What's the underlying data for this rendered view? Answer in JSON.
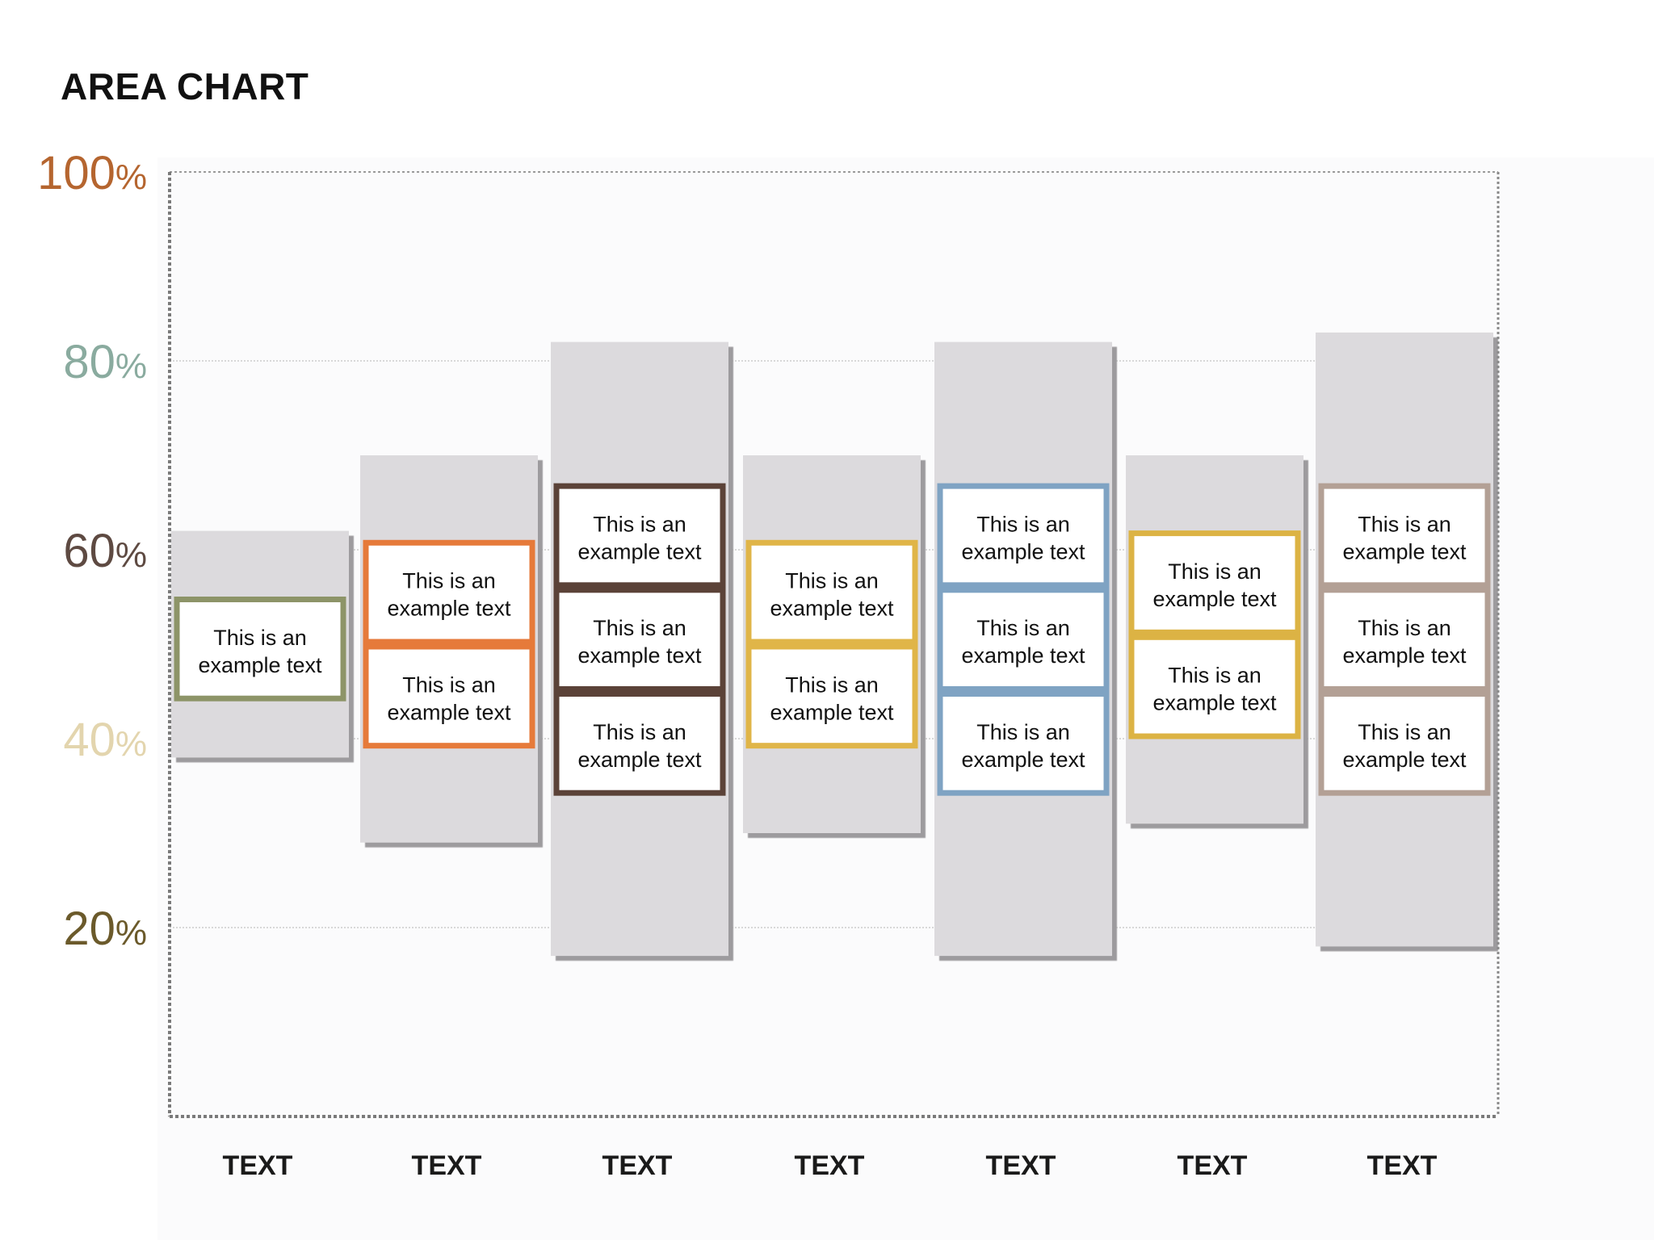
{
  "title": "AREA CHART",
  "chart_data": {
    "type": "bar",
    "title": "AREA CHART",
    "xlabel": "",
    "ylabel": "",
    "ylim": [
      0,
      100
    ],
    "grid": true,
    "categories": [
      "TEXT",
      "TEXT",
      "TEXT",
      "TEXT",
      "TEXT",
      "TEXT",
      "TEXT"
    ],
    "ranges": [
      {
        "low": 38,
        "high": 62
      },
      {
        "low": 29,
        "high": 70
      },
      {
        "low": 17,
        "high": 82
      },
      {
        "low": 30,
        "high": 70
      },
      {
        "low": 17,
        "high": 82
      },
      {
        "low": 31,
        "high": 70
      },
      {
        "low": 18,
        "high": 83
      }
    ],
    "y_ticks": [
      {
        "label": "100",
        "suffix": "%",
        "value": 100,
        "color": "#b5652f"
      },
      {
        "label": "80",
        "suffix": "%",
        "value": 80,
        "color": "#8aab9f"
      },
      {
        "label": "60",
        "suffix": "%",
        "value": 60,
        "color": "#5e4a42"
      },
      {
        "label": "40",
        "suffix": "%",
        "value": 40,
        "color": "#e3d5ae"
      },
      {
        "label": "20",
        "suffix": "%",
        "value": 20,
        "color": "#6b5a2b"
      }
    ],
    "column_colors": [
      "#8d9468",
      "#e67a3a",
      "#5b4238",
      "#e0b548",
      "#7fa3c3",
      "#dcb344",
      "#b3a095"
    ],
    "text_boxes": [
      {
        "column": 0,
        "line1": "This is an",
        "line2": "example text",
        "top": 55,
        "bottom": 44
      },
      {
        "column": 1,
        "line1": "This is an",
        "line2": "example text",
        "top": 61,
        "bottom": 50
      },
      {
        "column": 1,
        "line1": "This is an",
        "line2": "example text",
        "top": 50,
        "bottom": 39
      },
      {
        "column": 2,
        "line1": "This is an",
        "line2": "example text",
        "top": 67,
        "bottom": 56
      },
      {
        "column": 2,
        "line1": "This is an",
        "line2": "example text",
        "top": 56,
        "bottom": 45
      },
      {
        "column": 2,
        "line1": "This is an",
        "line2": "example text",
        "top": 45,
        "bottom": 34
      },
      {
        "column": 3,
        "line1": "This is an",
        "line2": "example text",
        "top": 61,
        "bottom": 50
      },
      {
        "column": 3,
        "line1": "This is an",
        "line2": "example text",
        "top": 50,
        "bottom": 39
      },
      {
        "column": 4,
        "line1": "This is an",
        "line2": "example text",
        "top": 67,
        "bottom": 56
      },
      {
        "column": 4,
        "line1": "This is an",
        "line2": "example text",
        "top": 56,
        "bottom": 45
      },
      {
        "column": 4,
        "line1": "This is an",
        "line2": "example text",
        "top": 45,
        "bottom": 34
      },
      {
        "column": 5,
        "line1": "This is an",
        "line2": "example text",
        "top": 62,
        "bottom": 51
      },
      {
        "column": 5,
        "line1": "This is an",
        "line2": "example text",
        "top": 51,
        "bottom": 40
      },
      {
        "column": 6,
        "line1": "This is an",
        "line2": "example text",
        "top": 67,
        "bottom": 56
      },
      {
        "column": 6,
        "line1": "This is an",
        "line2": "example text",
        "top": 56,
        "bottom": 45
      },
      {
        "column": 6,
        "line1": "This is an",
        "line2": "example text",
        "top": 45,
        "bottom": 34
      }
    ]
  }
}
